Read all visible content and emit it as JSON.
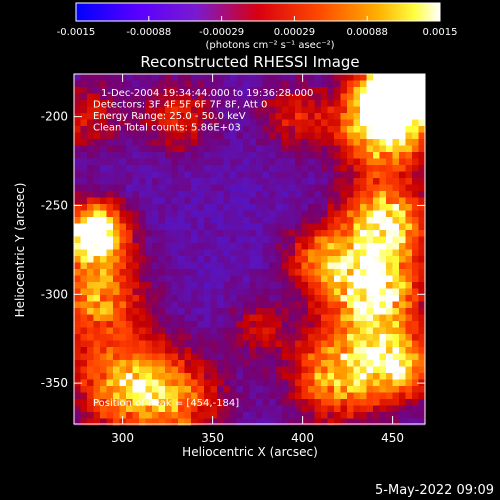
{
  "chart_data": {
    "type": "heatmap",
    "title": "Reconstructed RHESSI Image",
    "xlabel": "Heliocentric X (arcsec)",
    "ylabel": "Heliocentric Y (arcsec)",
    "xlim": [
      273,
      468
    ],
    "ylim": [
      -373,
      -176
    ],
    "x_ticks": [
      300,
      350,
      400,
      450
    ],
    "y_ticks": [
      -200,
      -250,
      -300,
      -350
    ],
    "colorbar": {
      "range": [
        -0.0015,
        0.0015
      ],
      "ticks": [
        "-0.0015",
        "-0.00088",
        "-0.00029",
        "0.00029",
        "0.00088",
        "0.0015"
      ],
      "unit_label": "(photons cm⁻² s⁻¹ asec⁻²)",
      "colormap": [
        "#0000ff",
        "#7a00ff",
        "#ff2000",
        "#ff8000",
        "#ffff00",
        "#ffffff"
      ]
    },
    "annotations": [
      "1-Dec-2004 19:34:44.000 to 19:36:28.000",
      "Detectors: 3F 4F 5F 6F 7F 8F, Att 0",
      "Energy Range: 25.0 - 50.0 keV",
      "Clean     Total counts: 5.86E+03"
    ],
    "peak_label": "Position of Peak = [454,-184]",
    "peak": [
      454,
      -184
    ]
  },
  "footer": {
    "date": "5-May-2022 09:09"
  }
}
